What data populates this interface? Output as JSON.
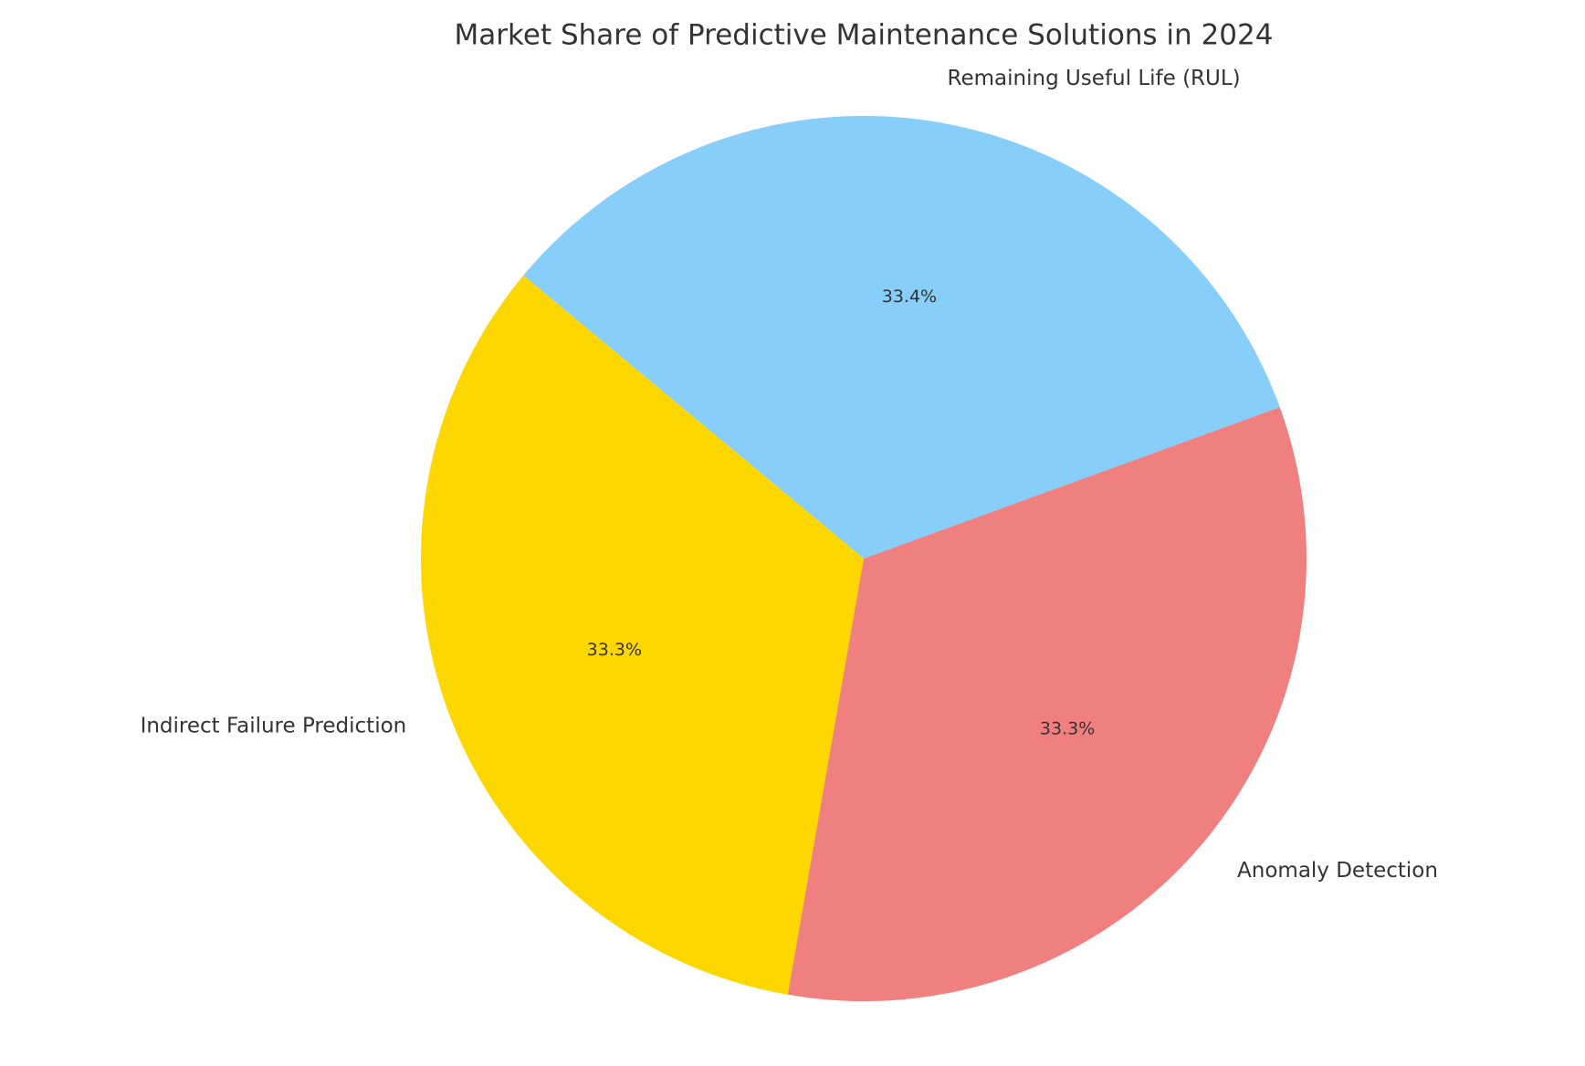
{
  "chart_data": {
    "type": "pie",
    "title": "Market Share of Predictive Maintenance Solutions in 2024",
    "categories": [
      "Remaining Useful Life (RUL)",
      "Indirect Failure Prediction",
      "Anomaly Detection"
    ],
    "values": [
      33.4,
      33.3,
      33.3
    ],
    "value_labels": [
      "33.4%",
      "33.3%",
      "33.3%"
    ],
    "colors": [
      "#87cefa",
      "#ffd700",
      "#f08080"
    ]
  }
}
